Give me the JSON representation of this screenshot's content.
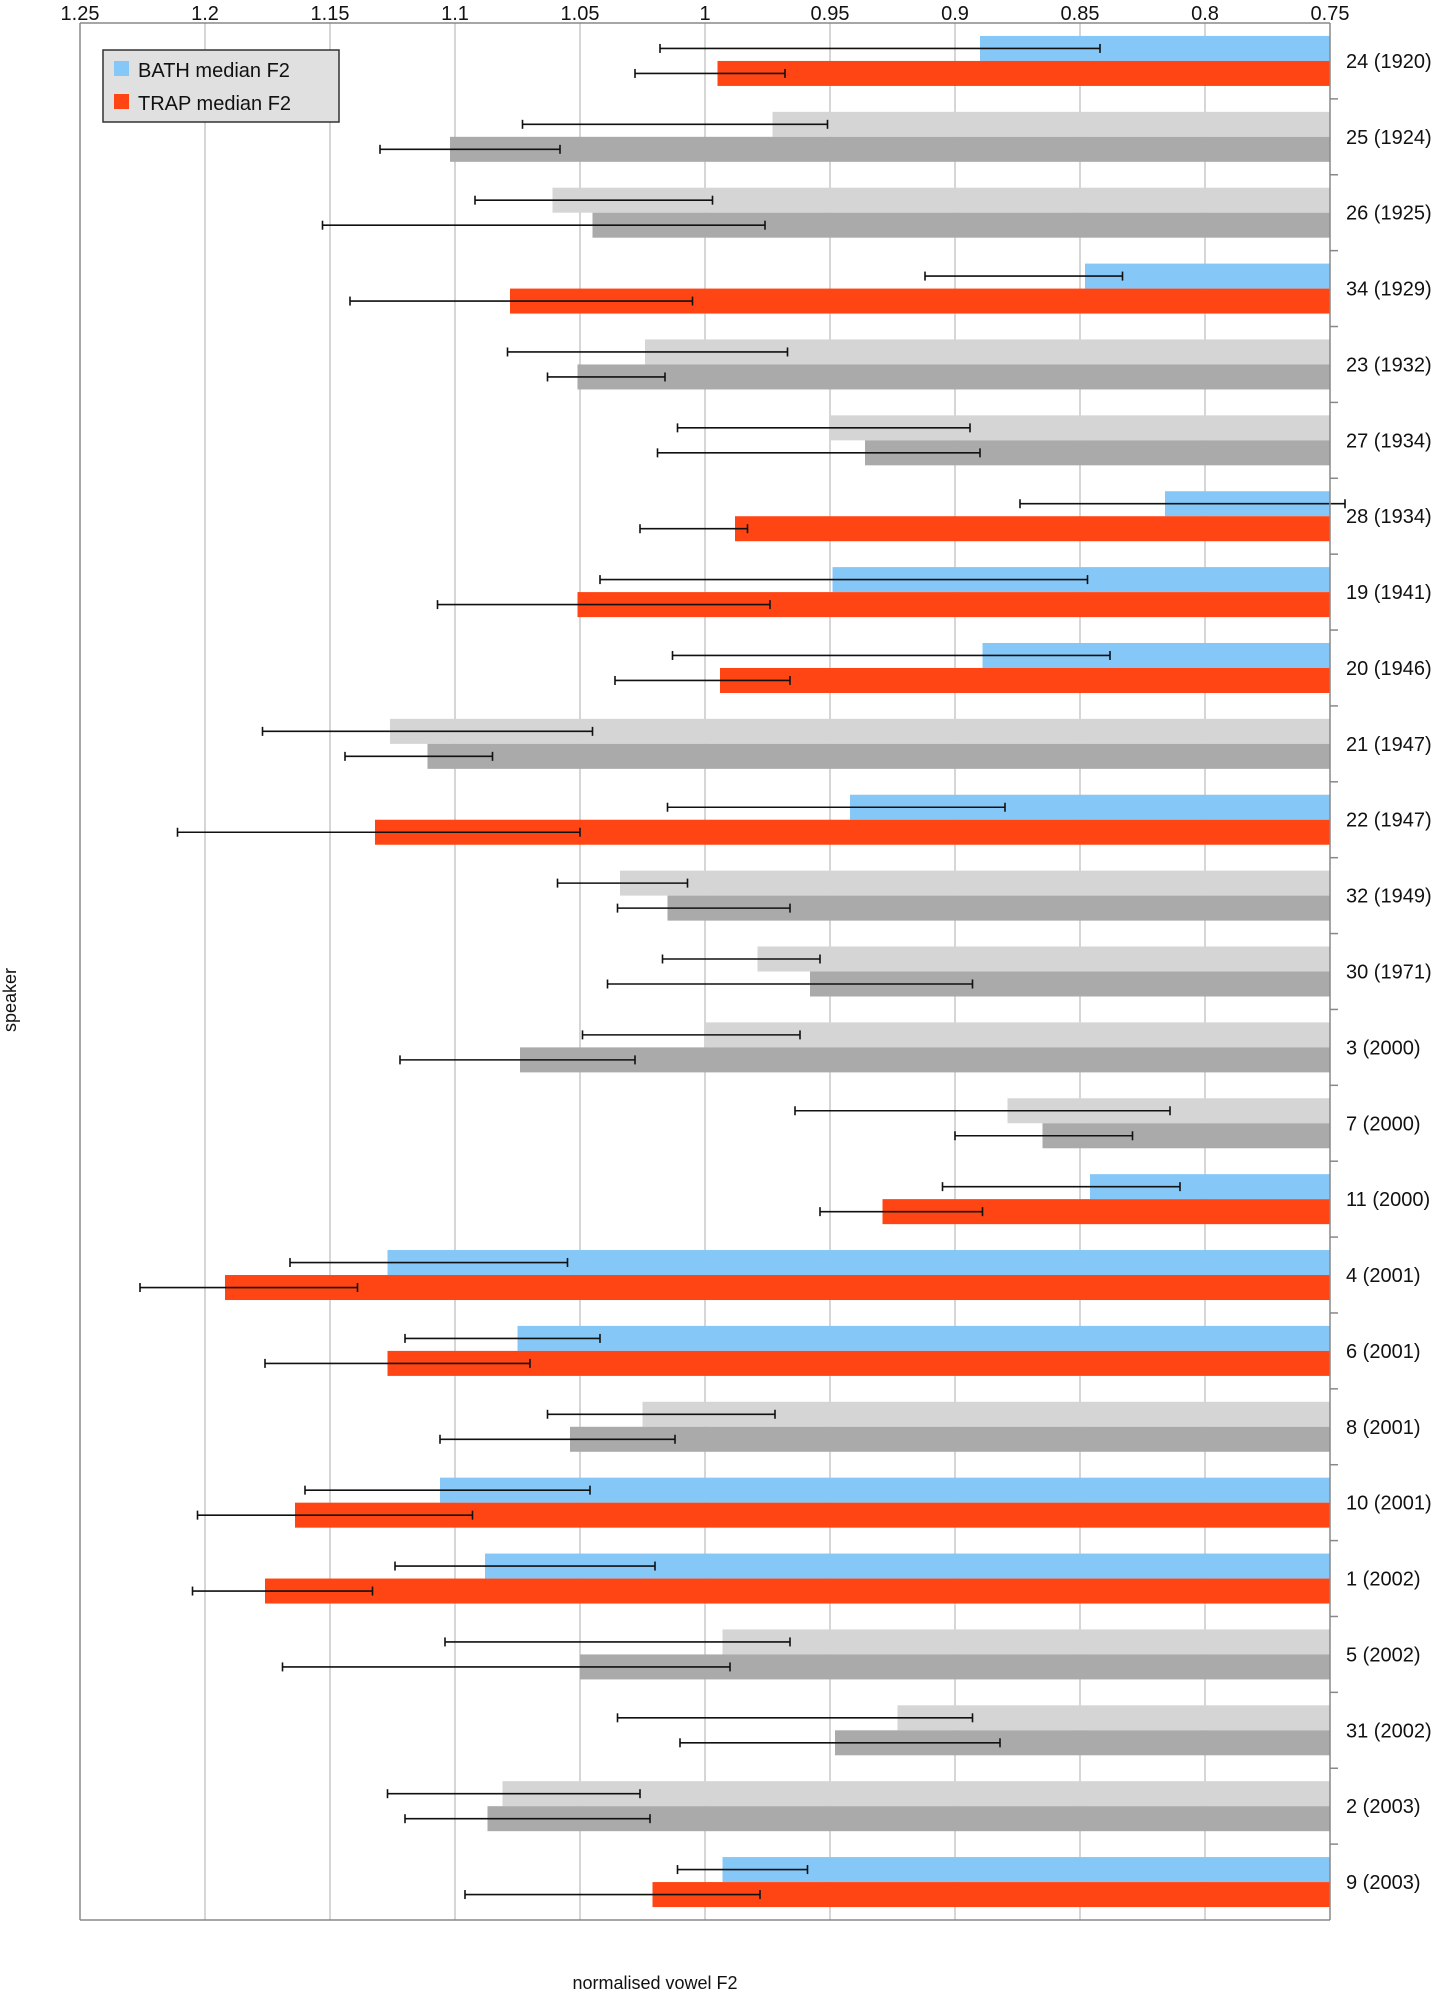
{
  "chart_data": {
    "type": "bar",
    "orientation": "horizontal",
    "title": "",
    "xlabel": "normalised vowel F2",
    "ylabel": "speaker",
    "xlim": [
      1.25,
      0.75
    ],
    "x_reversed": true,
    "x_ticks": [
      "1.25",
      "1.2",
      "1.15",
      "1.1",
      "1.05",
      "1",
      "0.95",
      "0.9",
      "0.85",
      "0.8",
      "0.75"
    ],
    "x_tick_values": [
      1.25,
      1.2,
      1.15,
      1.1,
      1.05,
      1.0,
      0.95,
      0.9,
      0.85,
      0.8,
      0.75
    ],
    "grid": true,
    "legend": {
      "position": "top-left",
      "entries": [
        {
          "label": "BATH median F2",
          "color": "#85c8f8"
        },
        {
          "label": "TRAP median F2",
          "color": "#ff4514"
        }
      ]
    },
    "colors": {
      "bath_significant": "#85c8f8",
      "trap_significant": "#ff4514",
      "bath_nonsignificant": "#d5d5d5",
      "trap_nonsignificant": "#aaaaaa",
      "error_bar": "#111111",
      "gridline": "#c8c8c8",
      "axis": "#888888"
    },
    "categories": [
      "24 (1920)",
      "25 (1924)",
      "26 (1925)",
      "34 (1929)",
      "23 (1932)",
      "27 (1934)",
      "28 (1934)",
      "19 (1941)",
      "20 (1946)",
      "21 (1947)",
      "22 (1947)",
      "32 (1949)",
      "30 (1971)",
      "3 (2000)",
      "7 (2000)",
      "11 (2000)",
      "4 (2001)",
      "6 (2001)",
      "8 (2001)",
      "10 (2001)",
      "1 (2002)",
      "5 (2002)",
      "31 (2002)",
      "2 (2003)",
      "9 (2003)"
    ],
    "significant": [
      true,
      false,
      false,
      true,
      false,
      false,
      true,
      true,
      true,
      false,
      true,
      false,
      false,
      false,
      false,
      true,
      true,
      true,
      false,
      true,
      true,
      false,
      false,
      false,
      true
    ],
    "series": [
      {
        "name": "BATH median F2",
        "values": [
          0.89,
          0.973,
          1.061,
          0.848,
          1.024,
          0.95,
          0.816,
          0.949,
          0.889,
          1.126,
          0.942,
          1.034,
          0.979,
          1.0,
          0.879,
          0.846,
          1.127,
          1.075,
          1.025,
          1.106,
          1.088,
          0.993,
          0.923,
          1.081,
          0.993
        ],
        "err_low": [
          1.018,
          1.073,
          1.092,
          0.912,
          1.079,
          1.011,
          0.874,
          1.042,
          1.013,
          1.177,
          1.015,
          1.059,
          1.017,
          1.049,
          0.964,
          0.905,
          1.166,
          1.12,
          1.063,
          1.16,
          1.124,
          1.104,
          1.035,
          1.127,
          1.011
        ],
        "err_high": [
          0.842,
          0.951,
          0.997,
          0.833,
          0.967,
          0.894,
          0.744,
          0.847,
          0.838,
          1.045,
          0.88,
          1.007,
          0.954,
          0.962,
          0.814,
          0.81,
          1.055,
          1.042,
          0.972,
          1.046,
          1.02,
          0.966,
          0.893,
          1.026,
          0.959
        ]
      },
      {
        "name": "TRAP median F2",
        "values": [
          0.995,
          1.102,
          1.045,
          1.078,
          1.051,
          0.936,
          0.988,
          1.051,
          0.994,
          1.111,
          1.132,
          1.015,
          0.958,
          1.074,
          0.865,
          0.929,
          1.192,
          1.127,
          1.054,
          1.164,
          1.176,
          1.05,
          0.948,
          1.087,
          1.021
        ],
        "err_low": [
          1.028,
          1.13,
          1.153,
          1.142,
          1.063,
          1.019,
          1.026,
          1.107,
          1.036,
          1.144,
          1.211,
          1.035,
          1.039,
          1.122,
          0.9,
          0.954,
          1.226,
          1.176,
          1.106,
          1.203,
          1.205,
          1.169,
          1.01,
          1.12,
          1.096
        ],
        "err_high": [
          0.968,
          1.058,
          0.976,
          1.005,
          1.016,
          0.89,
          0.983,
          0.974,
          0.966,
          1.085,
          1.05,
          0.966,
          0.893,
          1.028,
          0.829,
          0.889,
          1.139,
          1.07,
          1.012,
          1.093,
          1.133,
          0.99,
          0.882,
          1.022,
          0.978
        ]
      }
    ]
  }
}
